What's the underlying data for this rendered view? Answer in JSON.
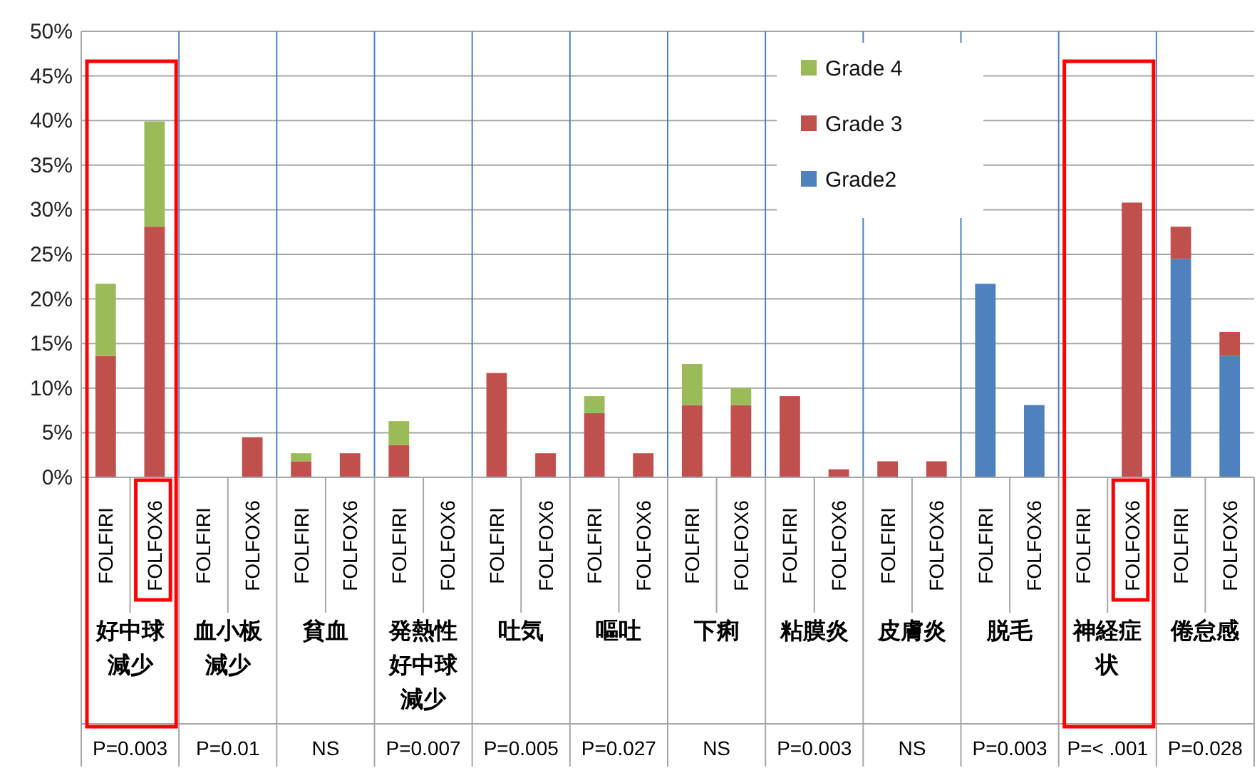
{
  "chart_data": {
    "type": "bar",
    "stacked": true,
    "categories": [
      "FOLFIRI",
      "FOLFOX6",
      "FOLFIRI",
      "FOLFOX6",
      "FOLFIRI",
      "FOLFOX6",
      "FOLFIRI",
      "FOLFOX6",
      "FOLFIRI",
      "FOLFOX6",
      "FOLFIRI",
      "FOLFOX6",
      "FOLFIRI",
      "FOLFOX6",
      "FOLFIRI",
      "FOLFOX6",
      "FOLFIRI",
      "FOLFOX6",
      "FOLFIRI",
      "FOLFOX6",
      "FOLFIRI",
      "FOLFOX6",
      "FOLFIRI",
      "FOLFOX6"
    ],
    "series": [
      {
        "name": "Grade2",
        "color": "#4f81bd",
        "values": [
          0,
          0,
          0,
          0,
          0,
          0,
          0,
          0,
          0,
          0,
          0,
          0,
          0,
          0,
          0,
          0,
          0,
          0,
          21.7,
          8.1,
          0,
          0,
          24.5,
          13.6
        ]
      },
      {
        "name": "Grade 3",
        "color": "#c0504d",
        "values": [
          13.6,
          28.1,
          0,
          4.5,
          1.8,
          2.7,
          3.6,
          0,
          11.7,
          2.7,
          7.2,
          2.7,
          8.1,
          8.1,
          9.1,
          0.9,
          1.8,
          1.8,
          0,
          0,
          0,
          30.8,
          3.6,
          2.7
        ]
      },
      {
        "name": "Grade 4",
        "color": "#9bbb59",
        "values": [
          8.1,
          11.8,
          0,
          0,
          0.9,
          0,
          2.7,
          0,
          0,
          0,
          1.9,
          0,
          4.6,
          1.9,
          0,
          0,
          0,
          0,
          0,
          0,
          0,
          0,
          0,
          0
        ]
      }
    ],
    "ylim": [
      0,
      50
    ],
    "yticks": [
      {
        "value": 0,
        "label": "0%"
      },
      {
        "value": 5,
        "label": "5%"
      },
      {
        "value": 10,
        "label": "10%"
      },
      {
        "value": 15,
        "label": "15%"
      },
      {
        "value": 20,
        "label": "20%"
      },
      {
        "value": 25,
        "label": "25%"
      },
      {
        "value": 30,
        "label": "30%"
      },
      {
        "value": 35,
        "label": "35%"
      },
      {
        "value": 40,
        "label": "40%"
      },
      {
        "value": 45,
        "label": "45%"
      },
      {
        "value": 50,
        "label": "50%"
      }
    ],
    "grid": "y",
    "legend": "top",
    "annotations": [
      "好中球減少",
      "血小板減少",
      "貧血",
      "発熱性好中球減少",
      "吐気",
      "嘔吐",
      "下痢",
      "粘膜炎",
      "皮膚炎",
      "脱毛",
      "神経症状",
      "倦怠感",
      "P=0.003",
      "P=0.01",
      "NS",
      "P=0.007",
      "P=0.005",
      "P=0.027",
      "NS",
      "P=0.003",
      "NS",
      "P=0.003",
      "P=< .001",
      "P=0.028"
    ]
  }
}
